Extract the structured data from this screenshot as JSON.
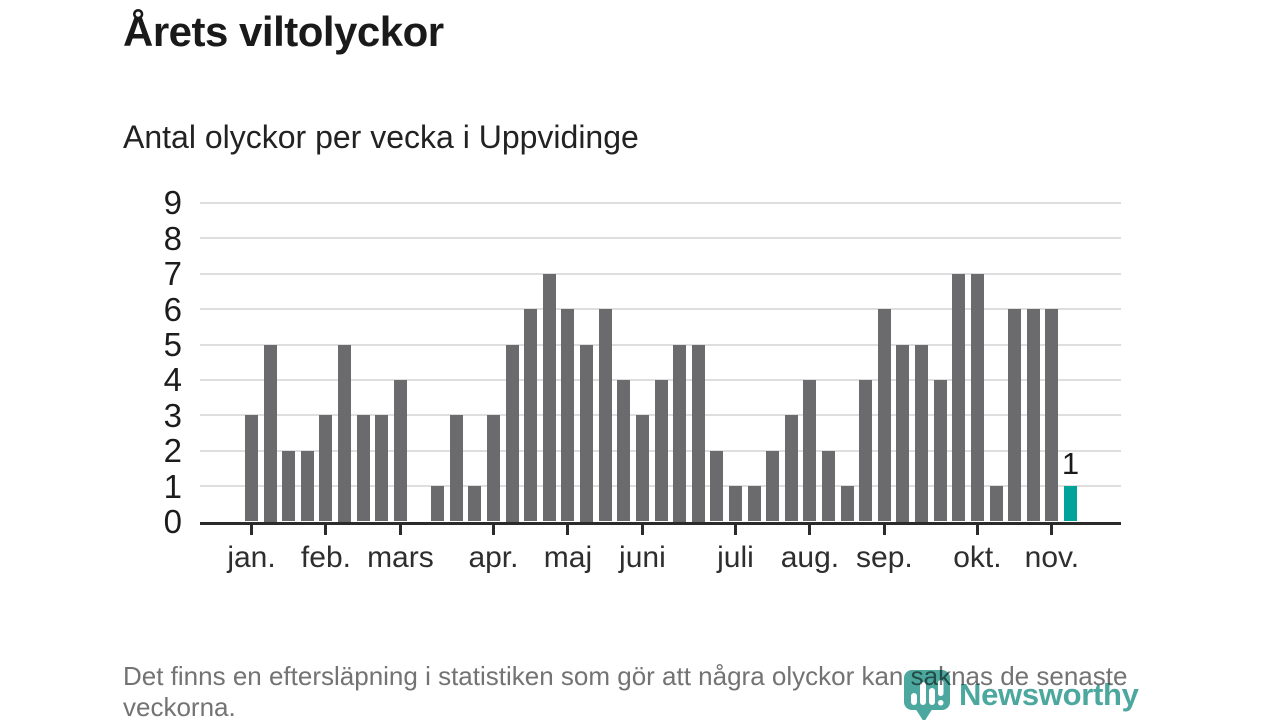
{
  "header": {
    "title": "Årets viltolyckor",
    "subtitle": "Antal olyckor per vecka i Uppvidinge"
  },
  "chart_data": {
    "type": "bar",
    "title": "Årets viltolyckor",
    "subtitle": "Antal olyckor per vecka i Uppvidinge",
    "x_unit": "vecka",
    "values": [
      3,
      5,
      2,
      2,
      3,
      5,
      3,
      3,
      4,
      0,
      1,
      3,
      1,
      3,
      5,
      6,
      7,
      6,
      5,
      6,
      4,
      3,
      4,
      5,
      5,
      2,
      1,
      1,
      2,
      3,
      4,
      2,
      1,
      4,
      6,
      5,
      5,
      4,
      7,
      7,
      1,
      6,
      6,
      6,
      1
    ],
    "y_ticks": [
      0,
      1,
      2,
      3,
      4,
      5,
      6,
      7,
      8,
      9
    ],
    "ylim": [
      0,
      9
    ],
    "grid": true,
    "month_ticks": [
      {
        "label": "jan.",
        "week": 1
      },
      {
        "label": "feb.",
        "week": 5
      },
      {
        "label": "mars",
        "week": 9
      },
      {
        "label": "apr.",
        "week": 14
      },
      {
        "label": "maj",
        "week": 18
      },
      {
        "label": "juni",
        "week": 22
      },
      {
        "label": "juli",
        "week": 27
      },
      {
        "label": "aug.",
        "week": 31
      },
      {
        "label": "sep.",
        "week": 35
      },
      {
        "label": "okt.",
        "week": 40
      },
      {
        "label": "nov.",
        "week": 44
      }
    ],
    "highlight_last_bar": true,
    "last_value_label": "1",
    "colors": {
      "bar": "#6b6b6e",
      "highlight": "#00a39a",
      "gridline": "#dedede",
      "axis": "#2b2b2b"
    }
  },
  "footer": {
    "note": "Det finns en eftersläpning i statistiken som gör att några olyckor kan saknas de senaste veckorna.",
    "logo_text": "Newsworthy",
    "logo_color": "#3da096"
  }
}
